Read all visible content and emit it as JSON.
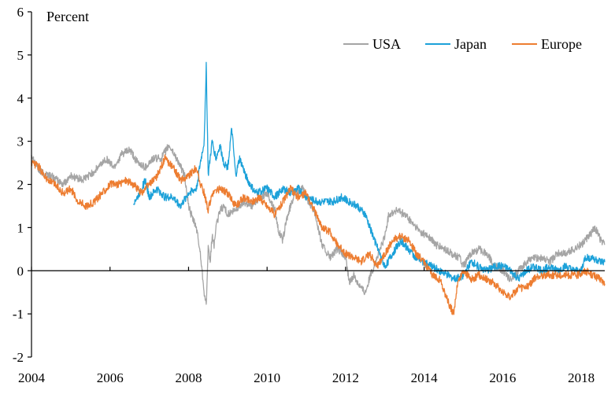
{
  "chart_data": {
    "type": "line",
    "title": "",
    "ylabel": "Percent",
    "xlabel": "",
    "xlim": [
      2004,
      2018.6
    ],
    "ylim": [
      -2,
      6
    ],
    "x_ticks": [
      "2004",
      "2006",
      "2008",
      "2010",
      "2012",
      "2014",
      "2016",
      "2018"
    ],
    "y_ticks": [
      "6",
      "5",
      "4",
      "3",
      "2",
      "1",
      "0",
      "-1",
      "-2"
    ],
    "legend_position": "top-right",
    "series": [
      {
        "name": "USA",
        "color": "#a5a5a5",
        "points": [
          [
            2004.0,
            2.7
          ],
          [
            2004.2,
            2.3
          ],
          [
            2004.5,
            2.2
          ],
          [
            2004.8,
            2.0
          ],
          [
            2005.0,
            2.2
          ],
          [
            2005.3,
            2.1
          ],
          [
            2005.6,
            2.3
          ],
          [
            2005.9,
            2.6
          ],
          [
            2006.1,
            2.4
          ],
          [
            2006.3,
            2.7
          ],
          [
            2006.5,
            2.8
          ],
          [
            2006.7,
            2.5
          ],
          [
            2006.9,
            2.4
          ],
          [
            2007.1,
            2.6
          ],
          [
            2007.3,
            2.6
          ],
          [
            2007.5,
            2.9
          ],
          [
            2007.7,
            2.6
          ],
          [
            2007.9,
            2.2
          ],
          [
            2008.0,
            1.5
          ],
          [
            2008.1,
            1.2
          ],
          [
            2008.2,
            1.0
          ],
          [
            2008.3,
            0.4
          ],
          [
            2008.4,
            -0.5
          ],
          [
            2008.45,
            -0.8
          ],
          [
            2008.5,
            0.5
          ],
          [
            2008.55,
            0.2
          ],
          [
            2008.6,
            0.8
          ],
          [
            2008.65,
            0.6
          ],
          [
            2008.7,
            1.0
          ],
          [
            2008.8,
            1.4
          ],
          [
            2008.9,
            1.5
          ],
          [
            2009.0,
            1.3
          ],
          [
            2009.2,
            1.4
          ],
          [
            2009.4,
            1.6
          ],
          [
            2009.6,
            1.5
          ],
          [
            2009.8,
            1.7
          ],
          [
            2010.0,
            1.8
          ],
          [
            2010.2,
            1.4
          ],
          [
            2010.3,
            0.9
          ],
          [
            2010.4,
            0.7
          ],
          [
            2010.5,
            1.2
          ],
          [
            2010.7,
            1.8
          ],
          [
            2010.9,
            1.9
          ],
          [
            2011.0,
            1.7
          ],
          [
            2011.2,
            1.4
          ],
          [
            2011.3,
            1.0
          ],
          [
            2011.4,
            0.6
          ],
          [
            2011.6,
            0.3
          ],
          [
            2011.8,
            0.5
          ],
          [
            2012.0,
            0.3
          ],
          [
            2012.1,
            -0.3
          ],
          [
            2012.2,
            -0.1
          ],
          [
            2012.4,
            -0.4
          ],
          [
            2012.5,
            -0.5
          ],
          [
            2012.6,
            -0.2
          ],
          [
            2012.8,
            0.3
          ],
          [
            2013.0,
            0.8
          ],
          [
            2013.1,
            1.3
          ],
          [
            2013.3,
            1.4
          ],
          [
            2013.5,
            1.3
          ],
          [
            2013.7,
            1.1
          ],
          [
            2013.9,
            0.9
          ],
          [
            2014.1,
            0.8
          ],
          [
            2014.3,
            0.6
          ],
          [
            2014.5,
            0.5
          ],
          [
            2014.7,
            0.4
          ],
          [
            2014.9,
            0.3
          ],
          [
            2015.0,
            0.1
          ],
          [
            2015.2,
            0.4
          ],
          [
            2015.4,
            0.5
          ],
          [
            2015.6,
            0.4
          ],
          [
            2015.8,
            0.1
          ],
          [
            2016.0,
            0.0
          ],
          [
            2016.2,
            -0.2
          ],
          [
            2016.4,
            0.0
          ],
          [
            2016.6,
            0.2
          ],
          [
            2016.8,
            0.3
          ],
          [
            2017.0,
            0.3
          ],
          [
            2017.2,
            0.2
          ],
          [
            2017.4,
            0.4
          ],
          [
            2017.6,
            0.4
          ],
          [
            2017.8,
            0.5
          ],
          [
            2018.0,
            0.6
          ],
          [
            2018.2,
            0.8
          ],
          [
            2018.35,
            1.0
          ],
          [
            2018.5,
            0.7
          ],
          [
            2018.6,
            0.6
          ]
        ]
      },
      {
        "name": "Japan",
        "color": "#1ca1d9",
        "points": [
          [
            2006.6,
            1.6
          ],
          [
            2006.7,
            1.7
          ],
          [
            2006.8,
            1.9
          ],
          [
            2006.9,
            2.1
          ],
          [
            2007.0,
            1.7
          ],
          [
            2007.2,
            1.9
          ],
          [
            2007.4,
            1.7
          ],
          [
            2007.6,
            1.7
          ],
          [
            2007.8,
            1.5
          ],
          [
            2008.0,
            1.8
          ],
          [
            2008.2,
            1.9
          ],
          [
            2008.3,
            2.5
          ],
          [
            2008.4,
            3.0
          ],
          [
            2008.45,
            4.8
          ],
          [
            2008.5,
            2.2
          ],
          [
            2008.6,
            3.0
          ],
          [
            2008.7,
            2.6
          ],
          [
            2008.8,
            2.9
          ],
          [
            2008.9,
            2.5
          ],
          [
            2009.0,
            2.4
          ],
          [
            2009.1,
            3.3
          ],
          [
            2009.2,
            2.2
          ],
          [
            2009.3,
            2.6
          ],
          [
            2009.5,
            2.1
          ],
          [
            2009.7,
            1.8
          ],
          [
            2010.0,
            1.9
          ],
          [
            2010.2,
            1.7
          ],
          [
            2010.4,
            1.9
          ],
          [
            2010.6,
            1.8
          ],
          [
            2010.8,
            1.9
          ],
          [
            2011.0,
            1.7
          ],
          [
            2011.3,
            1.6
          ],
          [
            2011.5,
            1.6
          ],
          [
            2011.7,
            1.6
          ],
          [
            2011.9,
            1.7
          ],
          [
            2012.1,
            1.6
          ],
          [
            2012.3,
            1.5
          ],
          [
            2012.5,
            1.3
          ],
          [
            2012.7,
            0.8
          ],
          [
            2012.9,
            0.3
          ],
          [
            2013.0,
            0.1
          ],
          [
            2013.2,
            0.4
          ],
          [
            2013.4,
            0.7
          ],
          [
            2013.6,
            0.5
          ],
          [
            2013.8,
            0.3
          ],
          [
            2014.0,
            0.2
          ],
          [
            2014.2,
            0.1
          ],
          [
            2014.4,
            0.0
          ],
          [
            2014.6,
            -0.1
          ],
          [
            2014.8,
            -0.2
          ],
          [
            2015.0,
            -0.1
          ],
          [
            2015.2,
            0.2
          ],
          [
            2015.4,
            0.1
          ],
          [
            2015.6,
            0.0
          ],
          [
            2015.8,
            0.1
          ],
          [
            2016.0,
            0.1
          ],
          [
            2016.2,
            0.0
          ],
          [
            2016.4,
            -0.2
          ],
          [
            2016.6,
            0.0
          ],
          [
            2016.8,
            0.1
          ],
          [
            2017.0,
            0.0
          ],
          [
            2017.2,
            0.1
          ],
          [
            2017.4,
            0.0
          ],
          [
            2017.6,
            0.1
          ],
          [
            2017.8,
            0.0
          ],
          [
            2018.0,
            0.0
          ],
          [
            2018.1,
            0.3
          ],
          [
            2018.3,
            0.3
          ],
          [
            2018.5,
            0.2
          ],
          [
            2018.6,
            0.2
          ]
        ]
      },
      {
        "name": "Europe",
        "color": "#ed7d31",
        "points": [
          [
            2004.0,
            2.5
          ],
          [
            2004.2,
            2.4
          ],
          [
            2004.4,
            2.1
          ],
          [
            2004.6,
            2.0
          ],
          [
            2004.8,
            1.8
          ],
          [
            2005.0,
            1.9
          ],
          [
            2005.2,
            1.6
          ],
          [
            2005.4,
            1.5
          ],
          [
            2005.6,
            1.6
          ],
          [
            2005.8,
            1.8
          ],
          [
            2006.0,
            2.0
          ],
          [
            2006.2,
            2.0
          ],
          [
            2006.4,
            2.1
          ],
          [
            2006.6,
            2.0
          ],
          [
            2006.8,
            1.8
          ],
          [
            2007.0,
            2.0
          ],
          [
            2007.2,
            2.2
          ],
          [
            2007.4,
            2.6
          ],
          [
            2007.6,
            2.4
          ],
          [
            2007.8,
            2.1
          ],
          [
            2008.0,
            2.2
          ],
          [
            2008.2,
            2.4
          ],
          [
            2008.3,
            2.0
          ],
          [
            2008.4,
            1.8
          ],
          [
            2008.5,
            1.4
          ],
          [
            2008.6,
            1.8
          ],
          [
            2008.8,
            1.9
          ],
          [
            2009.0,
            1.8
          ],
          [
            2009.2,
            1.5
          ],
          [
            2009.4,
            1.7
          ],
          [
            2009.6,
            1.6
          ],
          [
            2009.8,
            1.7
          ],
          [
            2010.0,
            1.5
          ],
          [
            2010.2,
            1.3
          ],
          [
            2010.4,
            1.6
          ],
          [
            2010.6,
            1.9
          ],
          [
            2010.8,
            1.7
          ],
          [
            2011.0,
            1.8
          ],
          [
            2011.2,
            1.4
          ],
          [
            2011.4,
            1.0
          ],
          [
            2011.6,
            0.9
          ],
          [
            2011.8,
            0.6
          ],
          [
            2012.0,
            0.4
          ],
          [
            2012.2,
            0.3
          ],
          [
            2012.4,
            0.2
          ],
          [
            2012.6,
            0.4
          ],
          [
            2012.8,
            0.1
          ],
          [
            2013.0,
            0.4
          ],
          [
            2013.2,
            0.7
          ],
          [
            2013.4,
            0.8
          ],
          [
            2013.6,
            0.7
          ],
          [
            2013.8,
            0.4
          ],
          [
            2014.0,
            0.2
          ],
          [
            2014.2,
            -0.1
          ],
          [
            2014.4,
            -0.2
          ],
          [
            2014.6,
            -0.7
          ],
          [
            2014.75,
            -1.0
          ],
          [
            2014.85,
            -0.3
          ],
          [
            2015.0,
            0.0
          ],
          [
            2015.2,
            -0.2
          ],
          [
            2015.4,
            -0.1
          ],
          [
            2015.6,
            -0.2
          ],
          [
            2015.8,
            -0.3
          ],
          [
            2016.0,
            -0.5
          ],
          [
            2016.2,
            -0.6
          ],
          [
            2016.4,
            -0.4
          ],
          [
            2016.6,
            -0.4
          ],
          [
            2016.8,
            -0.2
          ],
          [
            2017.0,
            -0.1
          ],
          [
            2017.3,
            -0.1
          ],
          [
            2017.6,
            -0.1
          ],
          [
            2017.9,
            -0.1
          ],
          [
            2018.1,
            0.0
          ],
          [
            2018.3,
            -0.1
          ],
          [
            2018.5,
            -0.2
          ],
          [
            2018.6,
            -0.3
          ]
        ]
      }
    ]
  }
}
